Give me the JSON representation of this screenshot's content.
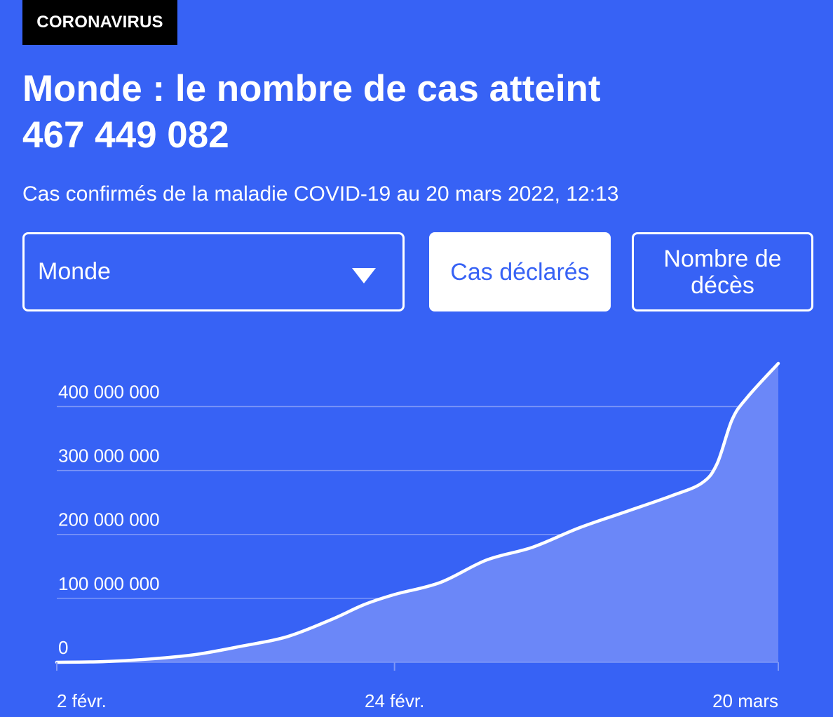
{
  "header": {
    "tag": "CORONAVIRUS",
    "title_line1": "Monde : le nombre de cas atteint",
    "title_line2": "467 449 082",
    "subtitle": "Cas confirmés de la maladie COVID-19 au 20 mars 2022, 12:13"
  },
  "controls": {
    "region_select": "Monde",
    "cases_button": "Cas déclarés",
    "deaths_button": "Nombre de décès"
  },
  "colors": {
    "background": "#3762f5",
    "line": "#ffffff",
    "area": "#6b87f8",
    "grid": "#7e97f7"
  },
  "chart_data": {
    "type": "area",
    "title": "",
    "xlabel": "",
    "ylabel": "",
    "ylim": [
      0,
      467449082
    ],
    "y_ticks": [
      0,
      100000000,
      200000000,
      300000000,
      400000000
    ],
    "y_tick_labels": [
      "0",
      "100 000 000",
      "200 000 000",
      "300 000 000",
      "400 000 000"
    ],
    "x_ticks": [
      "2020-02-02",
      "2020-02-24",
      "2020-03-20"
    ],
    "x_tick_labels": [
      "2 févr.",
      "24 févr.",
      "20 mars"
    ],
    "grid": true,
    "series": [
      {
        "x": [
          "2020-02-02",
          "2020-02-05",
          "2020-02-08",
          "2020-02-11",
          "2020-02-14",
          "2020-02-17",
          "2020-02-20",
          "2020-02-22",
          "2020-02-24",
          "2020-02-27",
          "2020-03-01",
          "2020-03-04",
          "2020-03-07",
          "2020-03-10",
          "2020-03-13",
          "2020-03-15",
          "2020-03-16",
          "2020-03-17",
          "2020-03-18",
          "2020-03-20"
        ],
        "values": [
          0,
          1000000,
          5000000,
          12000000,
          25000000,
          40000000,
          68000000,
          90000000,
          106000000,
          125000000,
          160000000,
          180000000,
          210000000,
          235000000,
          260000000,
          280000000,
          310000000,
          380000000,
          415000000,
          467449082
        ]
      }
    ]
  }
}
